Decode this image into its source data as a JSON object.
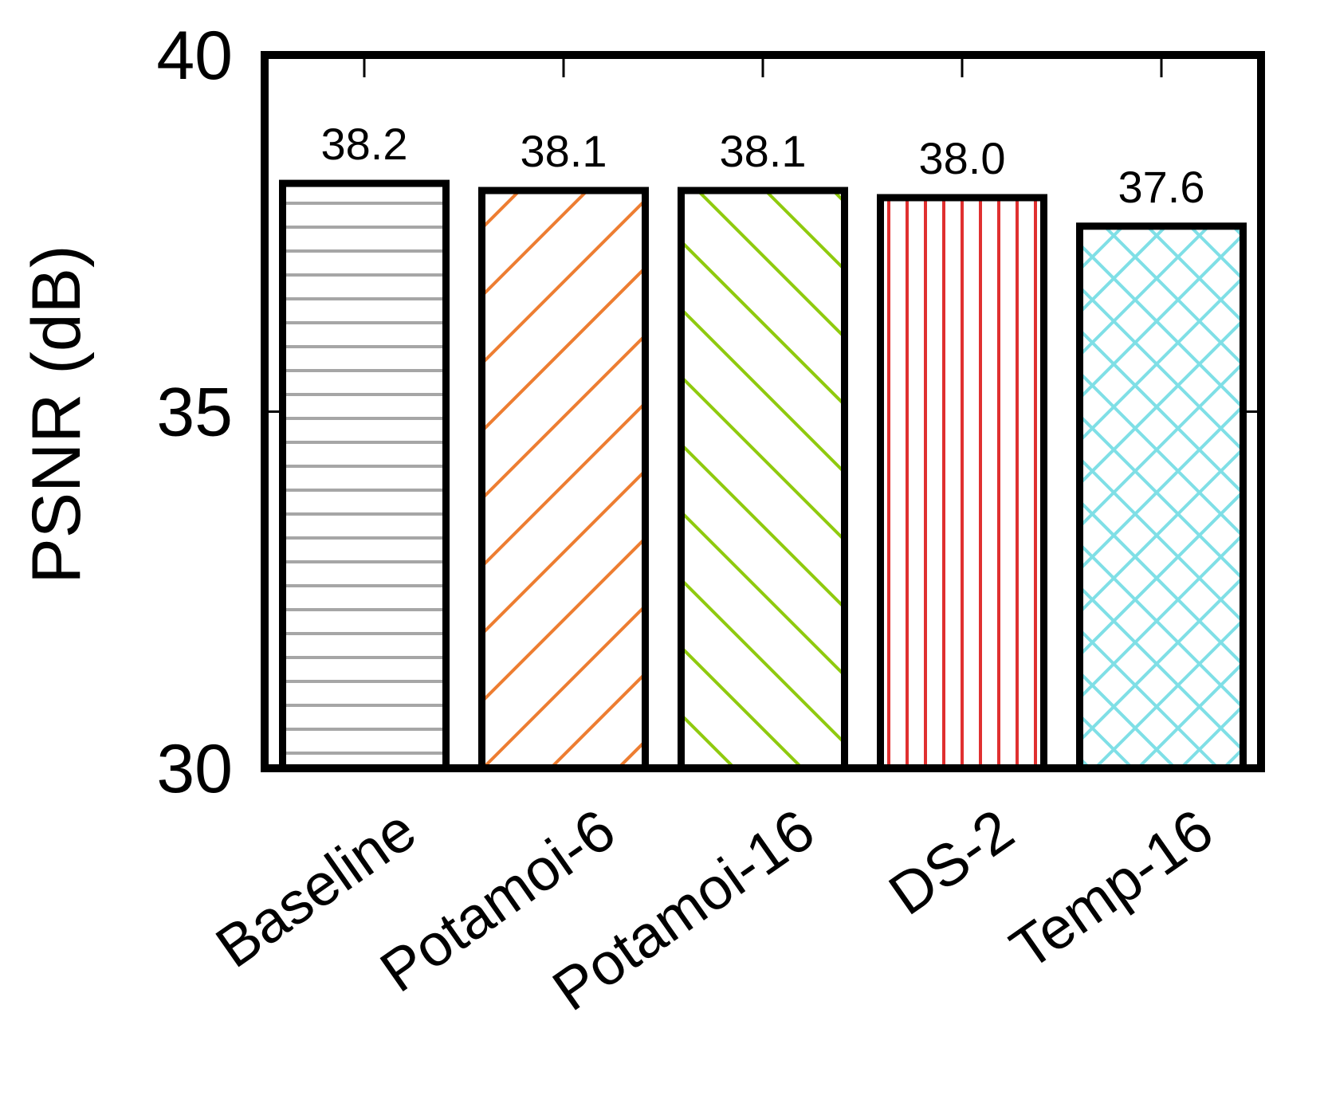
{
  "chart_data": {
    "type": "bar",
    "title": "",
    "xlabel": "",
    "ylabel": "PSNR (dB)",
    "ylim": [
      30,
      40
    ],
    "yticks": [
      30,
      35,
      40
    ],
    "grid": false,
    "categories": [
      "Baseline",
      "Potamoi-6",
      "Potamoi-16",
      "DS-2",
      "Temp-16"
    ],
    "values": [
      38.2,
      38.1,
      38.1,
      38.0,
      37.6
    ],
    "data_labels": [
      "38.2",
      "38.1",
      "38.1",
      "38.0",
      "37.6"
    ],
    "bar_styles": [
      {
        "color": "#a6a6a6",
        "pattern": "horizontal"
      },
      {
        "color": "#ed7d31",
        "pattern": "diagonal-down"
      },
      {
        "color": "#8fca0e",
        "pattern": "diagonal-up"
      },
      {
        "color": "#e03030",
        "pattern": "vertical"
      },
      {
        "color": "#7fdfe6",
        "pattern": "crosshatch"
      }
    ]
  }
}
